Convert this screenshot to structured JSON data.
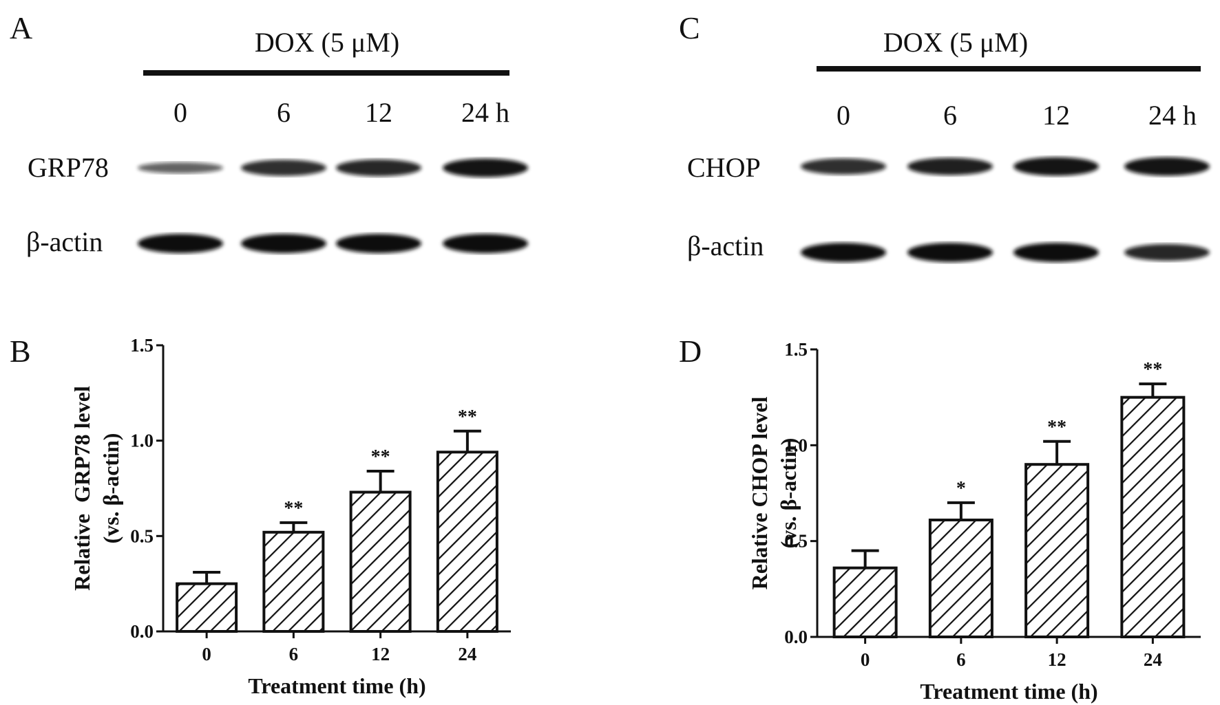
{
  "panel_labels": {
    "a": "A",
    "b": "B",
    "c": "C",
    "d": "D"
  },
  "blot_left": {
    "treatment": "DOX (5 μM)",
    "lanes": [
      "0",
      "6",
      "12",
      "24 h"
    ],
    "rows": [
      {
        "label": "GRP78",
        "intensity": [
          0.35,
          0.75,
          0.8,
          0.95
        ]
      },
      {
        "label": "β-actin",
        "intensity": [
          1,
          1,
          1,
          1
        ]
      }
    ]
  },
  "blot_right": {
    "treatment": "DOX (5 μM)",
    "lanes": [
      "0",
      "6",
      "12",
      "24 h"
    ],
    "rows": [
      {
        "label": "CHOP",
        "intensity": [
          0.75,
          0.85,
          0.95,
          0.95
        ]
      },
      {
        "label": "β-actin",
        "intensity": [
          1,
          1,
          1,
          0.8
        ]
      }
    ]
  },
  "chart_data": [
    {
      "type": "bar",
      "panel": "B",
      "title": "",
      "ylabel": "Relative  GRP78 level",
      "ylabel2": "(vs. β-actin)",
      "xlabel": "Treatment time (h)",
      "categories": [
        "0",
        "6",
        "12",
        "24"
      ],
      "values": [
        0.25,
        0.52,
        0.73,
        0.94
      ],
      "errors": [
        0.06,
        0.05,
        0.11,
        0.11
      ],
      "significance": [
        "",
        "**",
        "**",
        "**"
      ],
      "ylim": [
        0,
        1.5
      ],
      "yticks": [
        "0.0",
        "0.5",
        "1.0",
        "1.5"
      ],
      "fill": "diagonal-hatch",
      "grid": false
    },
    {
      "type": "bar",
      "panel": "D",
      "title": "",
      "ylabel": "Relative CHOP level",
      "ylabel2": "(vs. β-actin)",
      "xlabel": "Treatment time (h)",
      "categories": [
        "0",
        "6",
        "12",
        "24"
      ],
      "values": [
        0.36,
        0.61,
        0.9,
        1.25
      ],
      "errors": [
        0.09,
        0.09,
        0.12,
        0.07
      ],
      "significance": [
        "",
        "*",
        "**",
        "**"
      ],
      "ylim": [
        0,
        1.5
      ],
      "yticks": [
        "0.0",
        "0.5",
        "1.0",
        "1.5"
      ],
      "fill": "diagonal-hatch",
      "grid": false
    }
  ]
}
